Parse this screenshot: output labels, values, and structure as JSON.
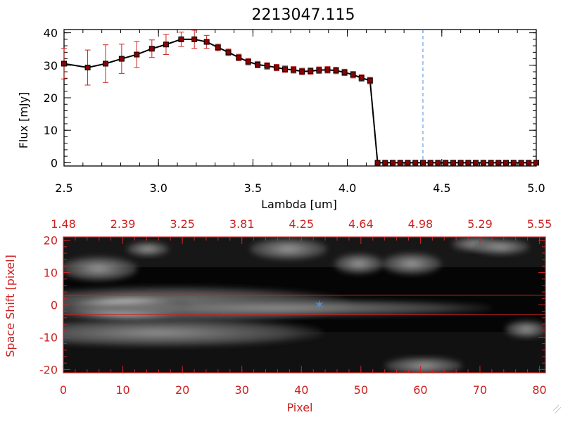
{
  "title": "2213047.115",
  "spectrum_chart": {
    "xlabel": "Lambda [um]",
    "ylabel": "Flux [mJy]",
    "xticks": [
      "2.5",
      "3.0",
      "3.5",
      "4.0",
      "4.5",
      "5.0"
    ],
    "yticks": [
      "0",
      "10",
      "20",
      "30",
      "40"
    ],
    "line_color": "#000000",
    "marker_color": "#8b0000",
    "errorbar_color": "#cc2222",
    "dashed_line_color": "#4f8fd8"
  },
  "image_panel": {
    "xlabel": "Pixel",
    "ylabel": "Space Shift [pixel]",
    "top_ticks": [
      "1.48",
      "2.39",
      "3.25",
      "3.81",
      "4.25",
      "4.64",
      "4.98",
      "5.29",
      "5.55"
    ],
    "bottom_ticks": [
      "0",
      "10",
      "20",
      "30",
      "40",
      "50",
      "60",
      "70",
      "80"
    ],
    "left_ticks": [
      "20",
      "10",
      "0",
      "-10",
      "-20"
    ],
    "frame_color": "#cc2222",
    "marker_color": "#4f8fd8"
  },
  "chart_data": [
    {
      "type": "line",
      "title": "2213047.115",
      "xlabel": "Lambda [um]",
      "ylabel": "Flux [mJy]",
      "xlim": [
        2.5,
        5.0
      ],
      "ylim": [
        -1,
        41
      ],
      "grid": false,
      "series": [
        {
          "x": [
            2.5,
            2.625,
            2.72,
            2.805,
            2.885,
            2.965,
            3.04,
            3.12,
            3.19,
            3.255,
            3.315,
            3.37,
            3.425,
            3.475,
            3.525,
            3.575,
            3.625,
            3.67,
            3.715,
            3.76,
            3.805,
            3.85,
            3.895,
            3.94,
            3.985,
            4.03,
            4.075,
            4.12,
            4.16,
            4.2,
            4.24,
            4.28,
            4.32,
            4.36,
            4.4,
            4.44,
            4.48,
            4.52,
            4.56,
            4.6,
            4.64,
            4.68,
            4.72,
            4.76,
            4.8,
            4.84,
            4.88,
            4.92,
            4.96,
            5.0
          ],
          "values": [
            30.5,
            29.3,
            30.5,
            32.0,
            33.3,
            35.1,
            36.4,
            38.0,
            38.0,
            37.2,
            35.5,
            34.0,
            32.4,
            31.1,
            30.2,
            29.8,
            29.3,
            28.8,
            28.6,
            28.1,
            28.2,
            28.5,
            28.6,
            28.4,
            27.8,
            27.1,
            26.1,
            25.3,
            0.0,
            0.0,
            0.0,
            0.0,
            0.0,
            0.0,
            0.0,
            0.0,
            0.0,
            0.0,
            0.0,
            0.0,
            0.0,
            0.0,
            0.0,
            0.0,
            0.0,
            0.0,
            0.0,
            0.0,
            0.0,
            0.0
          ],
          "errors": [
            4.7,
            5.4,
            5.8,
            4.5,
            4.0,
            2.7,
            3.1,
            2.2,
            2.8,
            2.0,
            1.0,
            1.0,
            1.0,
            1.0,
            1.0,
            1.0,
            1.0,
            1.0,
            1.0,
            1.0,
            1.0,
            1.0,
            1.0,
            1.0,
            1.0,
            1.0,
            1.0,
            1.0,
            0.2,
            0.2,
            0.2,
            0.2,
            0.2,
            0.2,
            0.2,
            0.2,
            0.2,
            0.2,
            0.2,
            0.2,
            0.2,
            0.2,
            0.2,
            0.2,
            0.2,
            0.2,
            0.2,
            0.2,
            0.2,
            0.2
          ]
        }
      ],
      "vertical_reference_x": 4.4
    },
    {
      "type": "heatmap",
      "xlabel": "Pixel",
      "ylabel": "Space Shift [pixel]",
      "xlim": [
        0,
        81
      ],
      "ylim": [
        -21,
        21
      ],
      "top_axis_labels": [
        "1.48",
        "2.39",
        "3.25",
        "3.81",
        "4.25",
        "4.64",
        "4.98",
        "5.29",
        "5.55"
      ],
      "bottom_axis_labels": [
        "0",
        "10",
        "20",
        "30",
        "40",
        "50",
        "60",
        "70",
        "80"
      ],
      "left_axis_labels": [
        "20",
        "10",
        "0",
        "-10",
        "-20"
      ],
      "aperture_y": [
        3,
        -3
      ],
      "marker_x": 43,
      "marker_y": 0
    }
  ]
}
